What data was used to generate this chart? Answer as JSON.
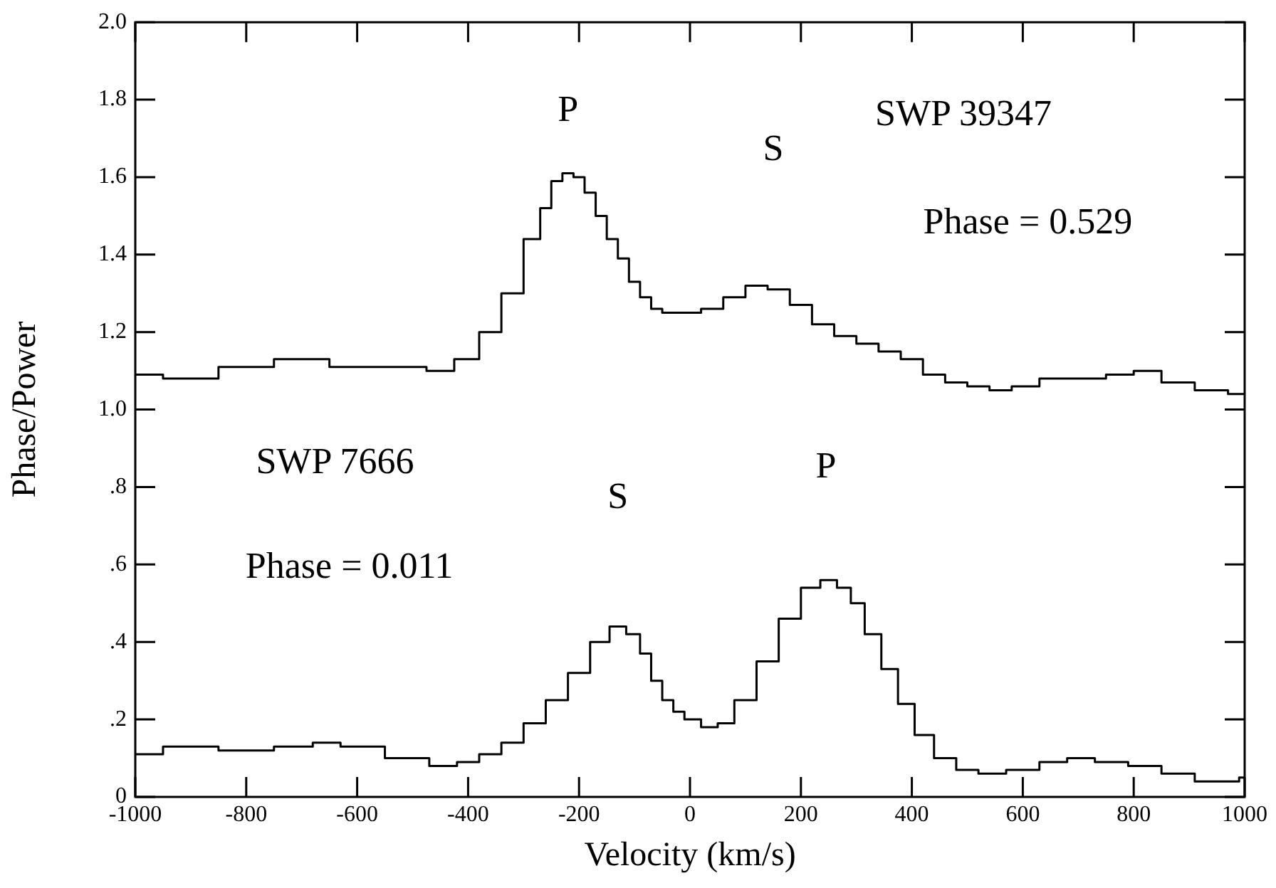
{
  "chart_data": {
    "type": "step",
    "xlabel": "Velocity (km/s)",
    "ylabel": "Phase/Power",
    "xlim": [
      -1000,
      1000
    ],
    "xticks": [
      -1000,
      -800,
      -600,
      -400,
      -200,
      0,
      200,
      400,
      600,
      800,
      1000
    ],
    "ylim": [
      0,
      2
    ],
    "yticks": [
      0,
      {
        "value": 0.2,
        "label": ".2"
      },
      {
        "value": 0.4,
        "label": ".4"
      },
      {
        "value": 0.6,
        "label": ".6"
      },
      {
        "value": 0.8,
        "label": ".8"
      },
      {
        "value": 1,
        "label": "1.0"
      },
      1.2,
      1.4,
      1.6,
      1.8,
      {
        "value": 2,
        "label": "2.0"
      }
    ],
    "grid": false,
    "legend": false,
    "marker": "none",
    "line_style": "solid",
    "series": [
      {
        "color": "#000000",
        "x": [
          -1000,
          -900,
          -800,
          -700,
          -600,
          -500,
          -450,
          -400,
          -360,
          -320,
          -280,
          -260,
          -240,
          -220,
          -200,
          -180,
          -160,
          -140,
          -120,
          -100,
          -80,
          -60,
          -40,
          0,
          40,
          80,
          120,
          160,
          200,
          240,
          280,
          320,
          360,
          400,
          440,
          480,
          520,
          560,
          600,
          660,
          720,
          780,
          820,
          880,
          940,
          1000
        ],
        "values": [
          1.09,
          1.08,
          1.11,
          1.13,
          1.11,
          1.11,
          1.1,
          1.13,
          1.2,
          1.3,
          1.44,
          1.52,
          1.59,
          1.61,
          1.6,
          1.56,
          1.5,
          1.44,
          1.39,
          1.33,
          1.29,
          1.26,
          1.25,
          1.25,
          1.26,
          1.29,
          1.32,
          1.31,
          1.27,
          1.22,
          1.19,
          1.17,
          1.15,
          1.13,
          1.09,
          1.07,
          1.06,
          1.05,
          1.06,
          1.08,
          1.08,
          1.09,
          1.1,
          1.07,
          1.05,
          1.04
        ]
      },
      {
        "color": "#000000",
        "x": [
          -1000,
          -900,
          -800,
          -700,
          -660,
          -600,
          -500,
          -440,
          -400,
          -360,
          -320,
          -280,
          -240,
          -200,
          -160,
          -130,
          -100,
          -80,
          -60,
          -40,
          -20,
          0,
          40,
          60,
          100,
          140,
          180,
          220,
          250,
          280,
          300,
          330,
          360,
          390,
          420,
          460,
          500,
          540,
          600,
          660,
          700,
          760,
          820,
          880,
          940,
          980,
          1000
        ],
        "values": [
          0.11,
          0.13,
          0.12,
          0.13,
          0.14,
          0.13,
          0.1,
          0.08,
          0.09,
          0.11,
          0.14,
          0.19,
          0.25,
          0.32,
          0.4,
          0.44,
          0.42,
          0.37,
          0.3,
          0.25,
          0.22,
          0.2,
          0.18,
          0.19,
          0.25,
          0.35,
          0.46,
          0.54,
          0.56,
          0.54,
          0.5,
          0.42,
          0.33,
          0.24,
          0.16,
          0.1,
          0.07,
          0.06,
          0.07,
          0.09,
          0.1,
          0.09,
          0.08,
          0.06,
          0.04,
          0.04,
          0.05
        ]
      }
    ],
    "annotations": [
      "P",
      "S",
      "SWP 39347",
      "Phase = 0.529",
      "S",
      "P",
      "SWP 7666",
      "Phase = 0.011"
    ]
  }
}
